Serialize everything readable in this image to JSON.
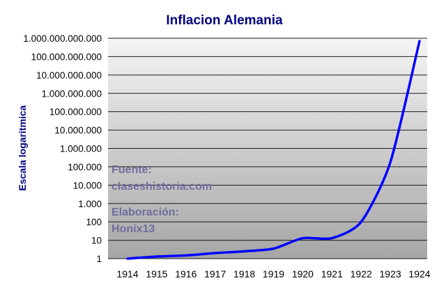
{
  "chart_data": {
    "type": "line",
    "title": "Inflacion Alemania",
    "ylabel": "Escala logaritmica",
    "xlabel": "",
    "y_scale": "log",
    "ylim": [
      1,
      1000000000000
    ],
    "grid": true,
    "categories": [
      "1914",
      "1915",
      "1916",
      "1917",
      "1918",
      "1919",
      "1920",
      "1921",
      "1922",
      "1923",
      "1924"
    ],
    "y_tick_labels": [
      "1",
      "10",
      "100",
      "1.000",
      "10.000",
      "100.000",
      "1.000.000",
      "10.000.000",
      "100.000.000",
      "1.000.000.000",
      "10.000.000.000",
      "100.000.000.000",
      "1.000.000.000.000"
    ],
    "series": [
      {
        "values": [
          1,
          1.3,
          1.5,
          2,
          2.5,
          3.5,
          13,
          13,
          100,
          175000,
          700000000000
        ]
      }
    ],
    "annotations": [
      [
        "Fuente:",
        "claseshistoria.com"
      ],
      [
        "Elaboración:",
        "Honix13"
      ]
    ],
    "colors": {
      "line": "#0000ff",
      "title": "#000080",
      "annotation": "#6f6f9e",
      "plot_bg_top": "#f4f4f4",
      "plot_bg_bottom": "#a6a6a6"
    }
  }
}
